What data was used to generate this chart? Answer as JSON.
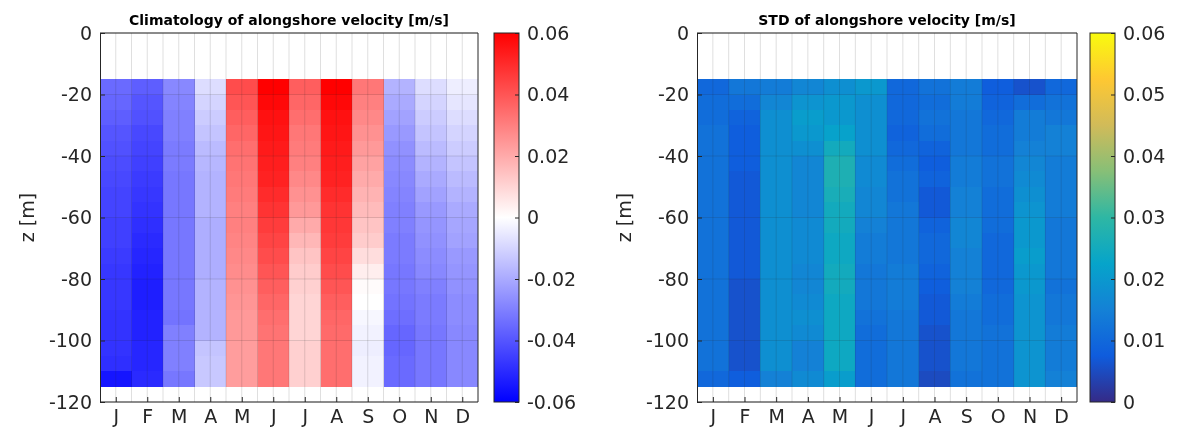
{
  "chart_data": [
    {
      "type": "heatmap",
      "title": "Climatology of alongshore velocity [m/s]",
      "ylabel": "z [m]",
      "categories": [
        "J",
        "F",
        "M",
        "A",
        "M",
        "J",
        "J",
        "A",
        "S",
        "O",
        "N",
        "D"
      ],
      "ylim": [
        -120,
        0
      ],
      "yticks": [
        -120,
        -100,
        -80,
        -60,
        -40,
        -20,
        0
      ],
      "clim": [
        -0.06,
        0.06
      ],
      "cticks": [
        -0.06,
        -0.04,
        -0.02,
        0,
        0.02,
        0.04,
        0.06
      ],
      "colors": [
        "#0000ff",
        "#ffffff",
        "#ff0000"
      ],
      "grid": true,
      "y": [
        -17.5,
        -22.5,
        -27.5,
        -32.5,
        -37.5,
        -42.5,
        -47.5,
        -52.5,
        -57.5,
        -62.5,
        -67.5,
        -72.5,
        -77.5,
        -82.5,
        -87.5,
        -92.5,
        -97.5,
        -102.5,
        -107.5,
        -112.5
      ],
      "cells": [
        [
          -0.035,
          -0.038,
          -0.028,
          -0.008,
          0.042,
          0.06,
          0.038,
          0.06,
          0.032,
          -0.018,
          -0.008,
          -0.004
        ],
        [
          -0.036,
          -0.04,
          -0.029,
          -0.01,
          0.04,
          0.058,
          0.036,
          0.058,
          0.03,
          -0.02,
          -0.01,
          -0.006
        ],
        [
          -0.038,
          -0.041,
          -0.03,
          -0.012,
          0.038,
          0.056,
          0.034,
          0.056,
          0.028,
          -0.022,
          -0.012,
          -0.008
        ],
        [
          -0.04,
          -0.043,
          -0.03,
          -0.014,
          0.036,
          0.055,
          0.032,
          0.055,
          0.026,
          -0.024,
          -0.014,
          -0.01
        ],
        [
          -0.041,
          -0.044,
          -0.031,
          -0.016,
          0.034,
          0.054,
          0.031,
          0.054,
          0.024,
          -0.026,
          -0.016,
          -0.012
        ],
        [
          -0.042,
          -0.045,
          -0.031,
          -0.017,
          0.033,
          0.053,
          0.03,
          0.053,
          0.022,
          -0.027,
          -0.018,
          -0.014
        ],
        [
          -0.043,
          -0.046,
          -0.032,
          -0.018,
          0.032,
          0.052,
          0.028,
          0.052,
          0.02,
          -0.028,
          -0.02,
          -0.016
        ],
        [
          -0.044,
          -0.047,
          -0.032,
          -0.018,
          0.031,
          0.05,
          0.026,
          0.05,
          0.018,
          -0.029,
          -0.022,
          -0.018
        ],
        [
          -0.044,
          -0.048,
          -0.032,
          -0.018,
          0.03,
          0.048,
          0.024,
          0.048,
          0.016,
          -0.03,
          -0.024,
          -0.02
        ],
        [
          -0.045,
          -0.049,
          -0.032,
          -0.019,
          0.03,
          0.046,
          0.02,
          0.047,
          0.014,
          -0.03,
          -0.025,
          -0.021
        ],
        [
          -0.045,
          -0.05,
          -0.032,
          -0.019,
          0.029,
          0.044,
          0.017,
          0.046,
          0.012,
          -0.031,
          -0.026,
          -0.022
        ],
        [
          -0.046,
          -0.051,
          -0.032,
          -0.019,
          0.028,
          0.042,
          0.014,
          0.044,
          0.008,
          -0.031,
          -0.027,
          -0.024
        ],
        [
          -0.047,
          -0.052,
          -0.032,
          -0.019,
          0.027,
          0.04,
          0.012,
          0.042,
          0.004,
          -0.032,
          -0.028,
          -0.025
        ],
        [
          -0.047,
          -0.053,
          -0.032,
          -0.018,
          0.026,
          0.038,
          0.011,
          0.04,
          0.001,
          -0.032,
          -0.03,
          -0.026
        ],
        [
          -0.047,
          -0.053,
          -0.032,
          -0.018,
          0.025,
          0.036,
          0.01,
          0.038,
          0,
          -0.033,
          -0.031,
          -0.027
        ],
        [
          -0.048,
          -0.052,
          -0.033,
          -0.018,
          0.024,
          0.034,
          0.01,
          0.036,
          -0.002,
          -0.034,
          -0.031,
          -0.027
        ],
        [
          -0.048,
          -0.052,
          -0.03,
          -0.018,
          0.024,
          0.033,
          0.01,
          0.035,
          -0.003,
          -0.036,
          -0.032,
          -0.028
        ],
        [
          -0.048,
          -0.051,
          -0.03,
          -0.014,
          0.023,
          0.032,
          0.011,
          0.034,
          -0.004,
          -0.036,
          -0.032,
          -0.028
        ],
        [
          -0.049,
          -0.051,
          -0.03,
          -0.013,
          0.023,
          0.032,
          0.011,
          0.034,
          -0.003,
          -0.035,
          -0.032,
          -0.028
        ],
        [
          -0.055,
          -0.05,
          -0.032,
          -0.013,
          0.023,
          0.032,
          0.011,
          0.034,
          -0.003,
          -0.035,
          -0.032,
          -0.028
        ]
      ]
    },
    {
      "type": "heatmap",
      "title": "STD of alongshore velocity [m/s]",
      "ylabel": "z [m]",
      "categories": [
        "J",
        "F",
        "M",
        "A",
        "M",
        "J",
        "J",
        "A",
        "S",
        "O",
        "N",
        "D"
      ],
      "ylim": [
        -120,
        0
      ],
      "yticks": [
        -120,
        -100,
        -80,
        -60,
        -40,
        -20,
        0
      ],
      "clim": [
        0,
        0.06
      ],
      "cticks": [
        0,
        0.01,
        0.02,
        0.03,
        0.04,
        0.05,
        0.06
      ],
      "colors": [
        "#352a87",
        "#0f5cdd",
        "#1481d6",
        "#06a4ca",
        "#2eb7a4",
        "#87bf77",
        "#d1bb59",
        "#fec832",
        "#f9fb0e"
      ],
      "grid": true,
      "y": [
        -17.5,
        -22.5,
        -27.5,
        -32.5,
        -37.5,
        -42.5,
        -47.5,
        -52.5,
        -57.5,
        -62.5,
        -67.5,
        -72.5,
        -77.5,
        -82.5,
        -87.5,
        -92.5,
        -97.5,
        -102.5,
        -107.5,
        -112.5
      ],
      "cells": [
        [
          0.01,
          0.013,
          0.014,
          0.016,
          0.018,
          0.02,
          0.01,
          0.012,
          0.014,
          0.008,
          0.006,
          0.01
        ],
        [
          0.011,
          0.011,
          0.016,
          0.019,
          0.02,
          0.018,
          0.01,
          0.011,
          0.014,
          0.009,
          0.011,
          0.012
        ],
        [
          0.011,
          0.009,
          0.018,
          0.021,
          0.02,
          0.018,
          0.01,
          0.012,
          0.013,
          0.01,
          0.014,
          0.013
        ],
        [
          0.012,
          0.008,
          0.018,
          0.02,
          0.022,
          0.018,
          0.009,
          0.011,
          0.013,
          0.011,
          0.014,
          0.015
        ],
        [
          0.012,
          0.008,
          0.018,
          0.018,
          0.025,
          0.018,
          0.01,
          0.009,
          0.013,
          0.011,
          0.015,
          0.015
        ],
        [
          0.012,
          0.008,
          0.018,
          0.016,
          0.027,
          0.017,
          0.011,
          0.008,
          0.014,
          0.012,
          0.016,
          0.014
        ],
        [
          0.012,
          0.007,
          0.018,
          0.016,
          0.027,
          0.017,
          0.012,
          0.009,
          0.014,
          0.012,
          0.017,
          0.014
        ],
        [
          0.012,
          0.007,
          0.018,
          0.016,
          0.026,
          0.016,
          0.012,
          0.007,
          0.015,
          0.011,
          0.018,
          0.014
        ],
        [
          0.012,
          0.007,
          0.018,
          0.016,
          0.025,
          0.016,
          0.013,
          0.007,
          0.015,
          0.011,
          0.019,
          0.014
        ],
        [
          0.012,
          0.007,
          0.018,
          0.017,
          0.025,
          0.015,
          0.013,
          0.009,
          0.016,
          0.011,
          0.02,
          0.013
        ],
        [
          0.012,
          0.007,
          0.018,
          0.017,
          0.024,
          0.014,
          0.013,
          0.01,
          0.016,
          0.01,
          0.02,
          0.013
        ],
        [
          0.012,
          0.007,
          0.018,
          0.017,
          0.024,
          0.014,
          0.013,
          0.01,
          0.015,
          0.01,
          0.021,
          0.013
        ],
        [
          0.012,
          0.007,
          0.018,
          0.016,
          0.025,
          0.013,
          0.014,
          0.009,
          0.015,
          0.01,
          0.02,
          0.013
        ],
        [
          0.012,
          0.006,
          0.018,
          0.016,
          0.025,
          0.013,
          0.014,
          0.008,
          0.015,
          0.01,
          0.02,
          0.012
        ],
        [
          0.012,
          0.006,
          0.018,
          0.017,
          0.024,
          0.013,
          0.014,
          0.007,
          0.014,
          0.011,
          0.019,
          0.013
        ],
        [
          0.012,
          0.006,
          0.018,
          0.018,
          0.024,
          0.012,
          0.013,
          0.007,
          0.013,
          0.011,
          0.019,
          0.013
        ],
        [
          0.012,
          0.006,
          0.018,
          0.017,
          0.024,
          0.011,
          0.013,
          0.006,
          0.013,
          0.012,
          0.019,
          0.014
        ],
        [
          0.012,
          0.006,
          0.018,
          0.015,
          0.024,
          0.011,
          0.013,
          0.006,
          0.013,
          0.012,
          0.019,
          0.014
        ],
        [
          0.012,
          0.006,
          0.018,
          0.015,
          0.024,
          0.011,
          0.013,
          0.006,
          0.013,
          0.012,
          0.019,
          0.014
        ],
        [
          0.01,
          0.008,
          0.015,
          0.017,
          0.021,
          0.011,
          0.013,
          0.005,
          0.012,
          0.012,
          0.019,
          0.015
        ]
      ]
    }
  ]
}
